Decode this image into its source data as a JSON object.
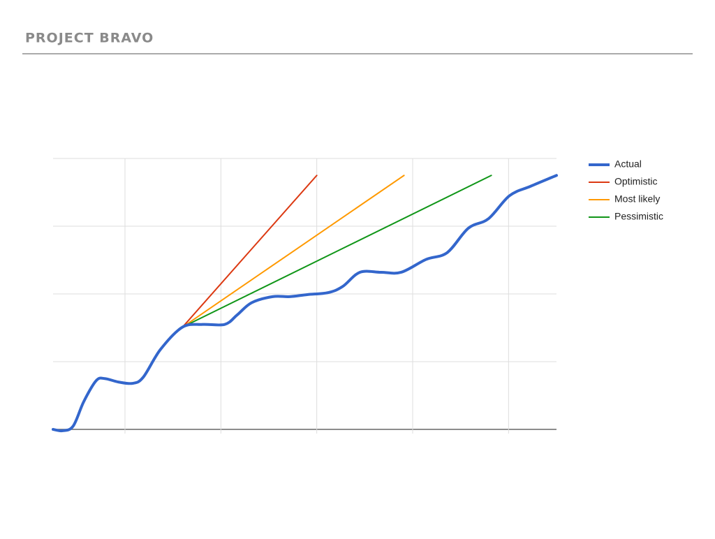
{
  "header": {
    "title": "PROJECT BRAVO"
  },
  "chart_data": {
    "type": "line",
    "xlim": [
      0,
      5.25
    ],
    "xticks": [
      0.75,
      1.75,
      2.75,
      3.75,
      4.75
    ],
    "ylim": [
      0,
      4
    ],
    "yticks": [
      0,
      1,
      2,
      3,
      4
    ],
    "grid": true,
    "legend": "right",
    "series": [
      {
        "name": "Actual",
        "color": "#3366cc",
        "width": 4,
        "x": [
          0,
          0.1,
          0.21,
          0.32,
          0.45,
          0.54,
          0.68,
          0.83,
          0.94,
          1.12,
          1.35,
          1.56,
          1.79,
          1.92,
          2.07,
          2.29,
          2.47,
          2.65,
          2.87,
          3.02,
          3.2,
          3.42,
          3.63,
          3.89,
          4.11,
          4.33,
          4.54,
          4.76,
          4.98,
          5.25
        ],
        "values": [
          0,
          -0.02,
          0.05,
          0.41,
          0.72,
          0.75,
          0.7,
          0.68,
          0.77,
          1.18,
          1.51,
          1.55,
          1.55,
          1.69,
          1.87,
          1.96,
          1.96,
          1.99,
          2.02,
          2.11,
          2.32,
          2.32,
          2.32,
          2.51,
          2.61,
          2.97,
          3.11,
          3.45,
          3.59,
          3.75
        ]
      },
      {
        "name": "Optimistic",
        "color": "#dc3912",
        "width": 2,
        "x": [
          1.35,
          2.75
        ],
        "values": [
          1.51,
          3.75
        ]
      },
      {
        "name": "Most likely",
        "color": "#ff9900",
        "width": 2,
        "x": [
          1.35,
          3.66
        ],
        "values": [
          1.51,
          3.75
        ]
      },
      {
        "name": "Pessimistic",
        "color": "#109618",
        "width": 2,
        "x": [
          1.35,
          4.57
        ],
        "values": [
          1.51,
          3.75
        ]
      }
    ]
  }
}
